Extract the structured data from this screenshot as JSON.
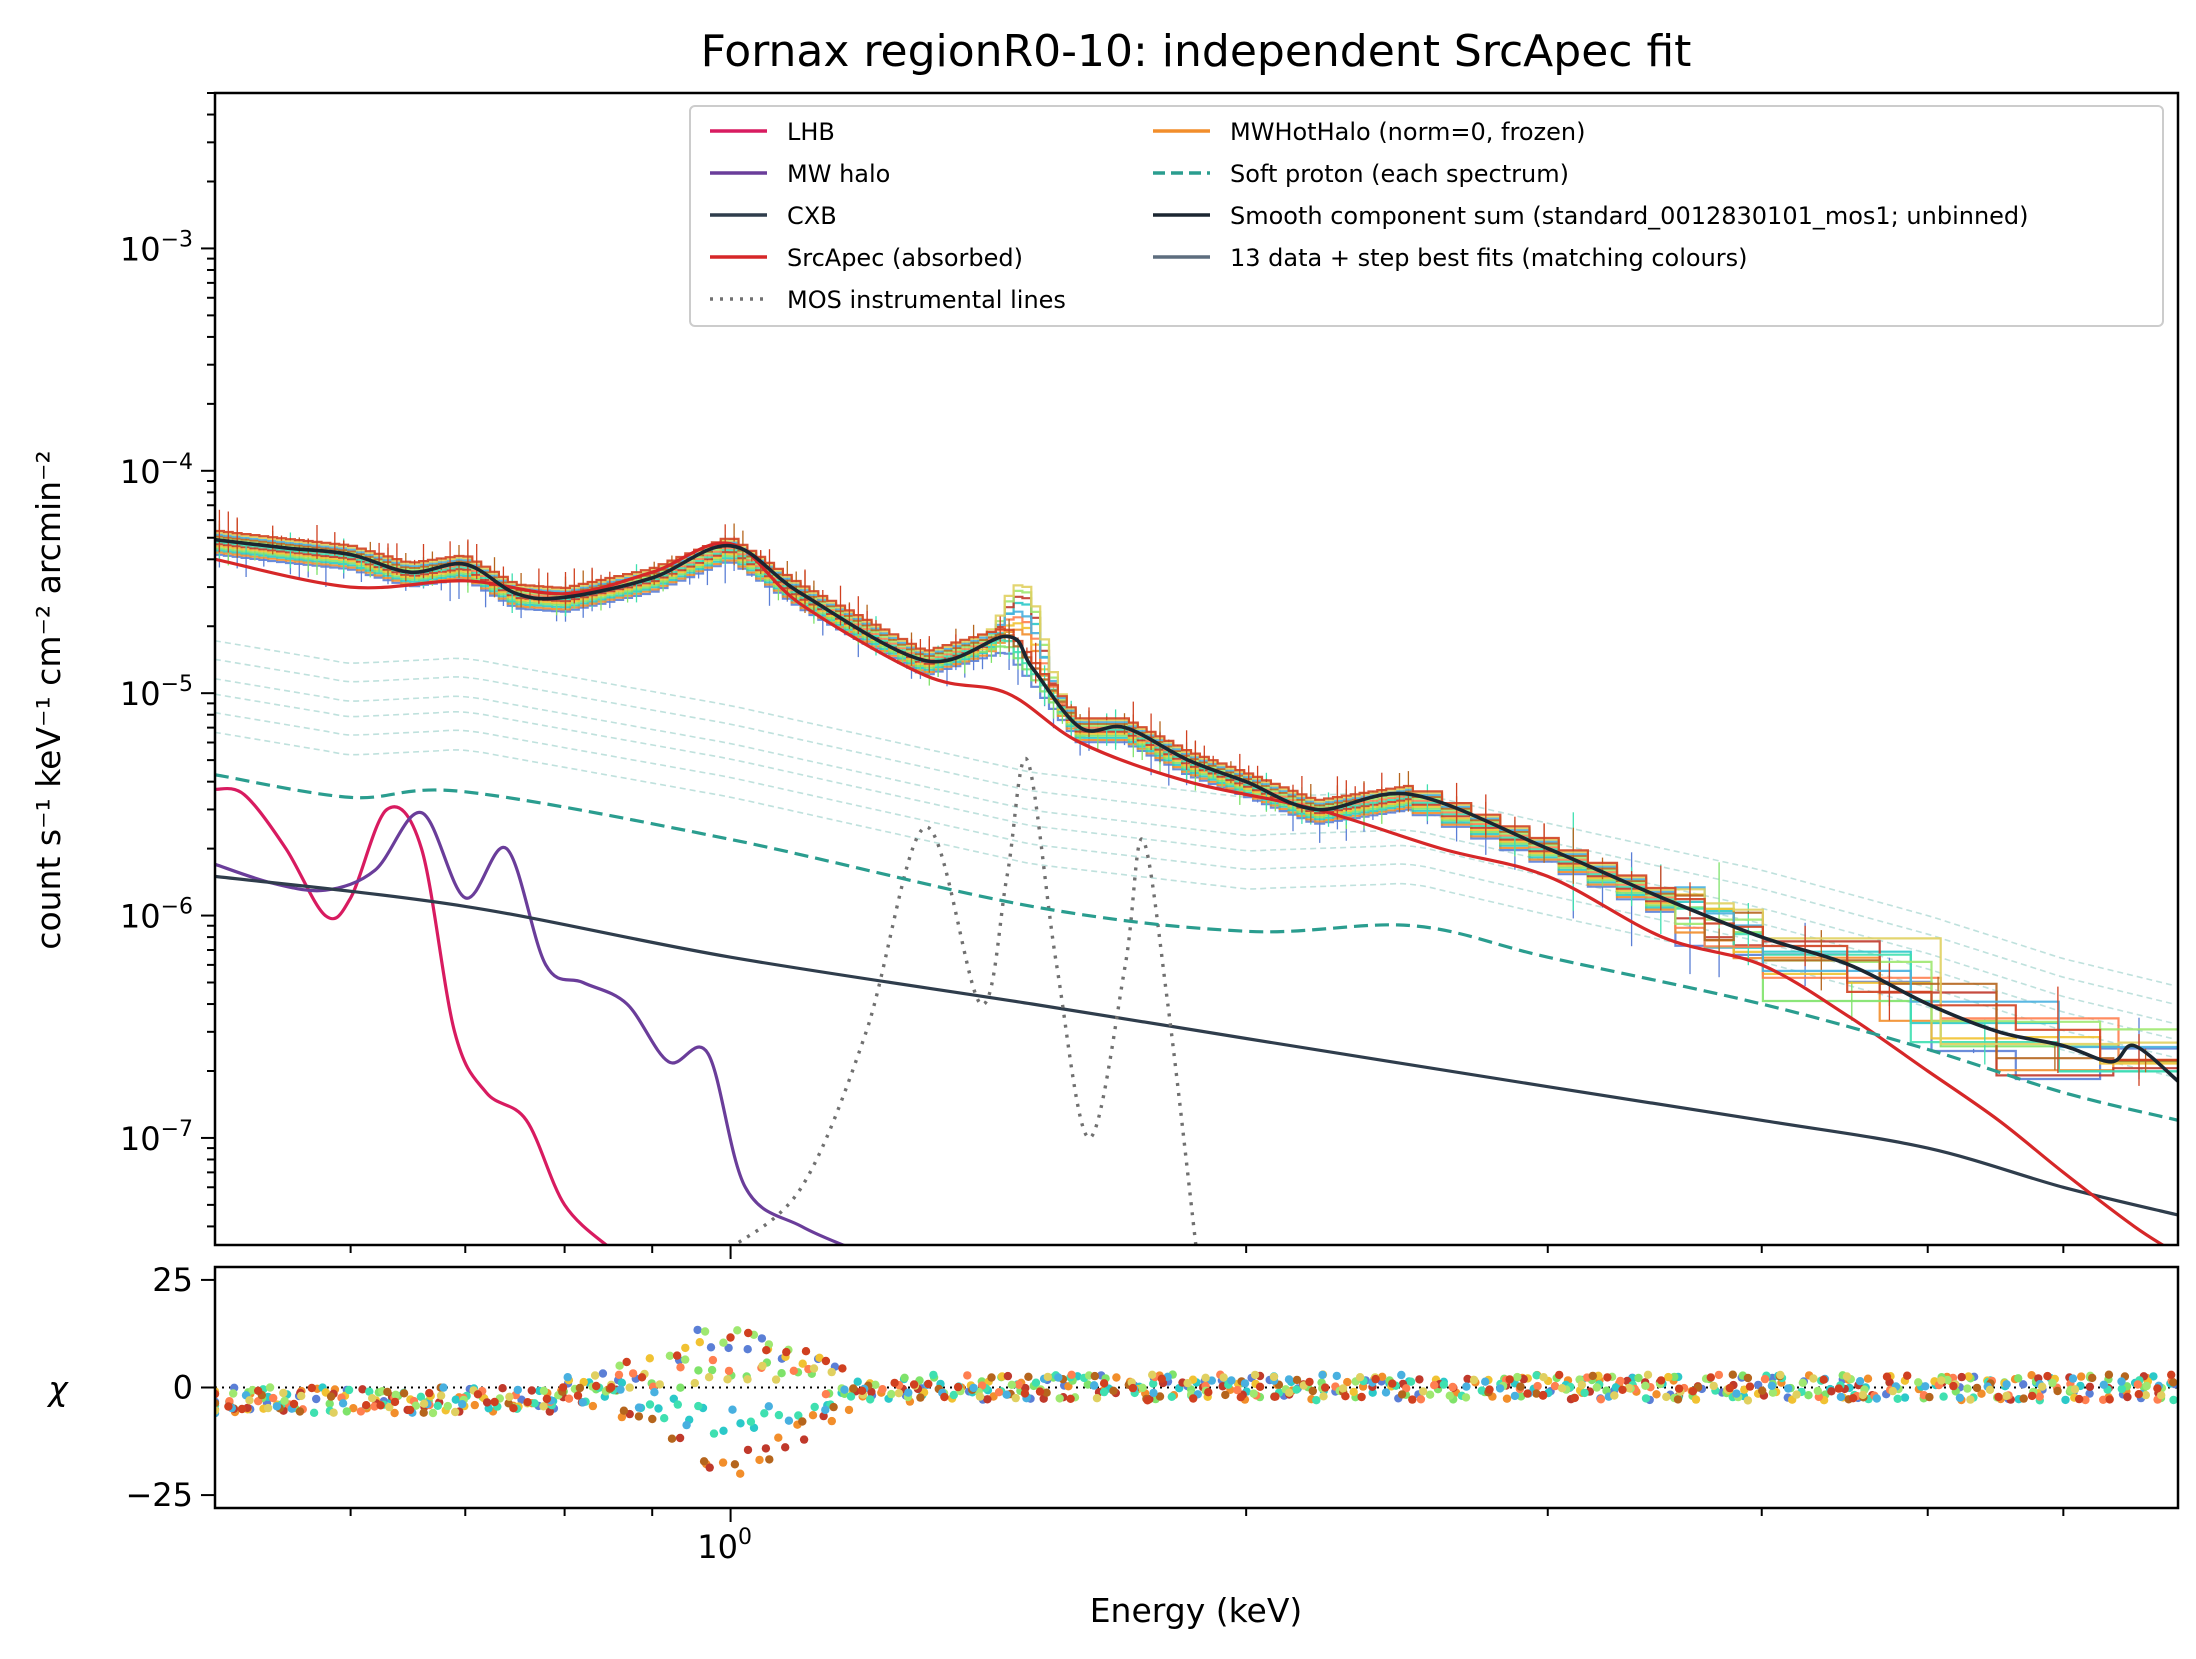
{
  "chart_data": [
    {
      "type": "line",
      "title": "Fornax regionR0-10: independent SrcApec fit",
      "xlabel": "Energy (keV)",
      "ylabel": "count s⁻¹ keV⁻¹ cm⁻² arcmin⁻²",
      "xscale": "log",
      "yscale": "log",
      "xlim": [
        0.5,
        7.0
      ],
      "ylim": [
        3.3e-08,
        0.005
      ],
      "x_ticks": [
        {
          "value": 1.0,
          "label": "10",
          "exp": "0"
        }
      ],
      "y_ticks": [
        {
          "value": 1e-07,
          "label": "10",
          "exp": "−7"
        },
        {
          "value": 1e-06,
          "label": "10",
          "exp": "−6"
        },
        {
          "value": 1e-05,
          "label": "10",
          "exp": "−5"
        },
        {
          "value": 0.0001,
          "label": "10",
          "exp": "−4"
        },
        {
          "value": 0.001,
          "label": "10",
          "exp": "−3"
        }
      ],
      "legend_position": "top-right",
      "legend": [
        {
          "name": "LHB",
          "color": "#d81b60",
          "style": "solid"
        },
        {
          "name": "MW halo",
          "color": "#6a3d9a",
          "style": "solid"
        },
        {
          "name": "CXB",
          "color": "#2f3d4c",
          "style": "solid"
        },
        {
          "name": "SrcApec (absorbed)",
          "color": "#d62728",
          "style": "solid"
        },
        {
          "name": "MOS instrumental lines",
          "color": "#707070",
          "style": "dotted"
        },
        {
          "name": "MWHotHalo (norm=0, frozen)",
          "color": "#f28e2b",
          "style": "solid"
        },
        {
          "name": "Soft proton (each spectrum)",
          "color": "#2a9d8f",
          "style": "dashed"
        },
        {
          "name": "Smooth component sum (standard_0012830101_mos1; unbinned)",
          "color": "#1b2631",
          "style": "solid"
        },
        {
          "name": "13 data + step best fits (matching colours)",
          "color": "#5d6d7e",
          "style": "solid"
        }
      ],
      "series": [
        {
          "name": "LHB",
          "color": "#d81b60",
          "x": [
            0.5,
            0.52,
            0.55,
            0.58,
            0.6,
            0.63,
            0.66,
            0.69,
            0.72,
            0.76,
            0.8,
            0.85
          ],
          "y": [
            3.7e-06,
            3.5e-06,
            2e-06,
            1e-06,
            1.2e-06,
            3e-06,
            2e-06,
            3e-07,
            1.6e-07,
            1.2e-07,
            5e-08,
            3.2e-08
          ]
        },
        {
          "name": "MW halo",
          "color": "#6a3d9a",
          "x": [
            0.5,
            0.54,
            0.58,
            0.62,
            0.66,
            0.7,
            0.74,
            0.78,
            0.82,
            0.87,
            0.92,
            0.97,
            1.02,
            1.1,
            1.2
          ],
          "y": [
            1.7e-06,
            1.4e-06,
            1.3e-06,
            1.6e-06,
            2.9e-06,
            1.2e-06,
            2e-06,
            6e-07,
            5e-07,
            4e-07,
            2.2e-07,
            2.4e-07,
            6e-08,
            4e-08,
            3e-08
          ]
        },
        {
          "name": "CXB",
          "color": "#2f3d4c",
          "x": [
            0.5,
            0.7,
            1.0,
            1.5,
            2.0,
            3.0,
            4.0,
            5.0,
            6.0,
            7.0
          ],
          "y": [
            1.5e-06,
            1.1e-06,
            6.5e-07,
            4e-07,
            2.8e-07,
            1.7e-07,
            1.2e-07,
            9e-08,
            6e-08,
            4.5e-08
          ]
        },
        {
          "name": "SrcApec (absorbed)",
          "color": "#d62728",
          "x": [
            0.5,
            0.6,
            0.7,
            0.8,
            0.9,
            1.0,
            1.1,
            1.3,
            1.45,
            1.6,
            1.85,
            2.2,
            2.6,
            3.0,
            3.5,
            4.0,
            4.5,
            5.0,
            5.5,
            6.0,
            6.6,
            7.0
          ],
          "y": [
            4e-05,
            3e-05,
            3.2e-05,
            2.8e-05,
            3.5e-05,
            4.7e-05,
            2.5e-05,
            1.2e-05,
            1e-05,
            6e-06,
            4e-06,
            3e-06,
            2e-06,
            1.5e-06,
            8e-07,
            6e-07,
            3.5e-07,
            2e-07,
            1.2e-07,
            7e-08,
            4e-08,
            3e-08
          ]
        },
        {
          "name": "MOS instrumental lines",
          "color": "#707070",
          "x": [
            1.0,
            1.1,
            1.2,
            1.3,
            1.4,
            1.45,
            1.49,
            1.55,
            1.62,
            1.7,
            1.74,
            1.8,
            1.87
          ],
          "y": [
            3.2e-08,
            6e-08,
            3e-07,
            2.5e-06,
            4e-07,
            1.5e-06,
            5e-06,
            6e-07,
            1e-07,
            6e-07,
            2.2e-06,
            4e-07,
            3.2e-08
          ]
        },
        {
          "name": "Soft proton (each spectrum)",
          "color": "#2a9d8f",
          "x": [
            0.5,
            0.6,
            0.7,
            1.0,
            1.5,
            2.0,
            2.5,
            3.0,
            4.0,
            5.0,
            6.0,
            7.0
          ],
          "y": [
            4.3e-06,
            3.4e-06,
            3.6e-06,
            2.2e-06,
            1.1e-06,
            8.5e-07,
            9e-07,
            6.5e-07,
            4e-07,
            2.5e-07,
            1.6e-07,
            1.2e-07
          ]
        },
        {
          "name": "Smooth component sum (standard_0012830101_mos1; unbinned)",
          "color": "#1b2631",
          "x": [
            0.5,
            0.55,
            0.6,
            0.65,
            0.7,
            0.75,
            0.8,
            0.9,
            1.0,
            1.1,
            1.3,
            1.45,
            1.5,
            1.6,
            1.7,
            1.85,
            2.0,
            2.2,
            2.5,
            3.0,
            3.5,
            4.0,
            4.5,
            5.0,
            5.5,
            6.0,
            6.4,
            6.6,
            7.0
          ],
          "y": [
            4.9e-05,
            4.5e-05,
            4.2e-05,
            3.5e-05,
            3.8e-05,
            2.8e-05,
            2.7e-05,
            3.3e-05,
            4.6e-05,
            2.8e-05,
            1.4e-05,
            1.8e-05,
            1.3e-05,
            7e-06,
            7e-06,
            5e-06,
            4e-06,
            3e-06,
            3.5e-06,
            2e-06,
            1.2e-06,
            8e-07,
            6e-07,
            4e-07,
            3e-07,
            2.6e-07,
            2.2e-07,
            2.6e-07,
            1.8e-07
          ]
        }
      ]
    },
    {
      "type": "scatter",
      "ylabel": "χ",
      "xlabel": "Energy (keV)",
      "xscale": "log",
      "xlim": [
        0.5,
        7.0
      ],
      "ylim": [
        -28,
        28
      ],
      "y_ticks": [
        {
          "value": 25,
          "label": "25"
        },
        {
          "value": 0,
          "label": "0"
        },
        {
          "value": -25,
          "label": "−25"
        }
      ],
      "x_ticks": [
        {
          "value": 1.0,
          "label": "10",
          "exp": "0"
        }
      ],
      "reference_line": 0
    }
  ]
}
